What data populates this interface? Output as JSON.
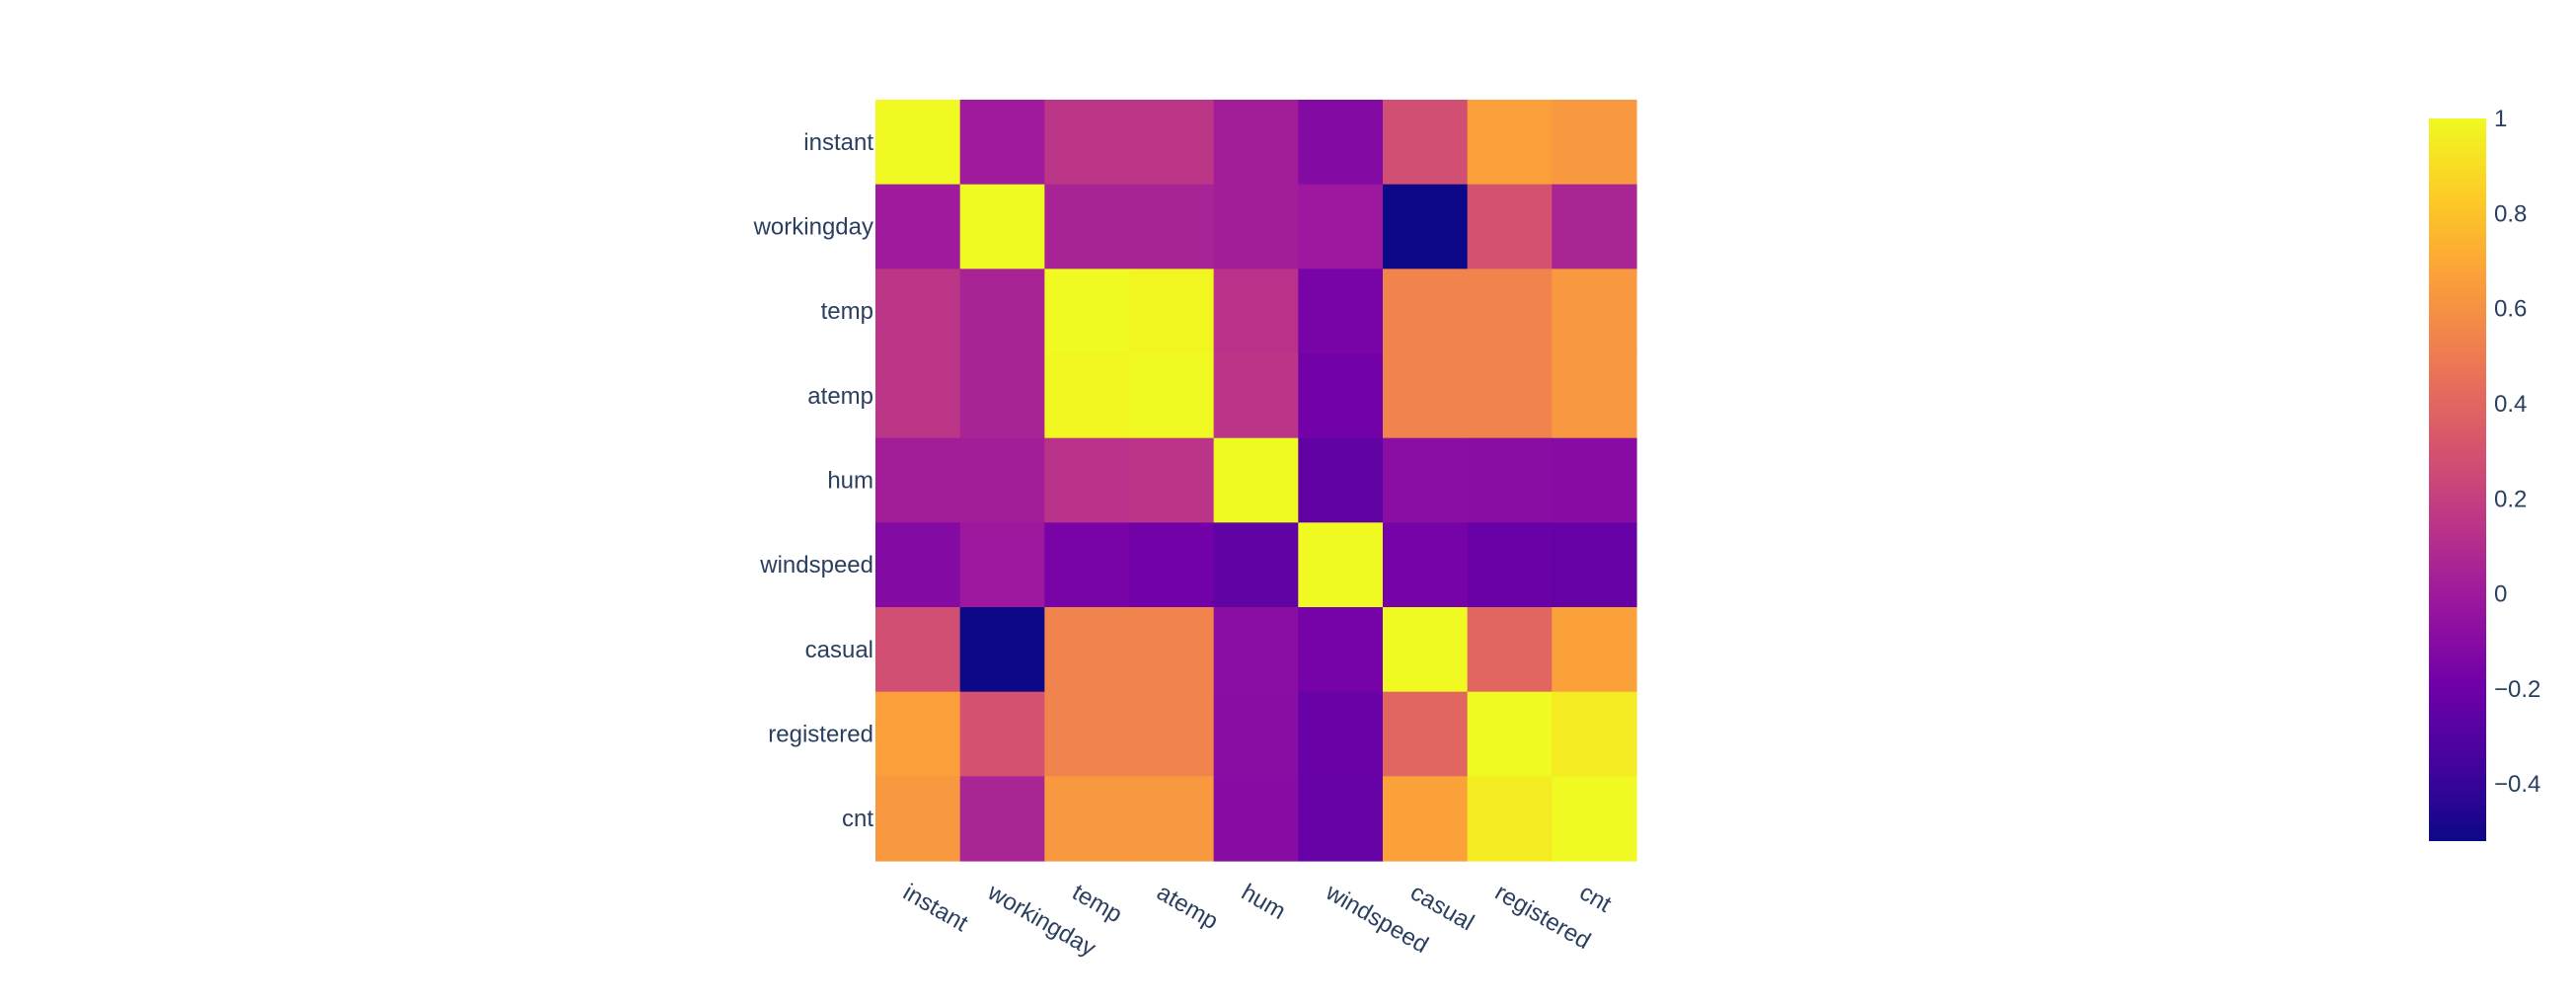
{
  "chart_data": {
    "type": "heatmap",
    "title": "",
    "xlabel": "",
    "ylabel": "",
    "variables": [
      "instant",
      "workingday",
      "temp",
      "atemp",
      "hum",
      "windspeed",
      "casual",
      "registered",
      "cnt"
    ],
    "x": [
      "instant",
      "workingday",
      "temp",
      "atemp",
      "hum",
      "windspeed",
      "casual",
      "registered",
      "cnt"
    ],
    "y": [
      "instant",
      "workingday",
      "temp",
      "atemp",
      "hum",
      "windspeed",
      "casual",
      "registered",
      "cnt"
    ],
    "z": [
      [
        1.0,
        -0.0,
        0.15,
        0.15,
        0.02,
        -0.11,
        0.28,
        0.66,
        0.63
      ],
      [
        -0.0,
        1.0,
        0.05,
        0.05,
        0.02,
        -0.01,
        -0.52,
        0.3,
        0.06
      ],
      [
        0.15,
        0.05,
        1.0,
        0.99,
        0.13,
        -0.16,
        0.54,
        0.54,
        0.63
      ],
      [
        0.15,
        0.05,
        0.99,
        1.0,
        0.14,
        -0.18,
        0.54,
        0.54,
        0.63
      ],
      [
        0.02,
        0.02,
        0.13,
        0.14,
        1.0,
        -0.25,
        -0.08,
        -0.09,
        -0.1
      ],
      [
        -0.11,
        -0.01,
        -0.16,
        -0.18,
        -0.25,
        1.0,
        -0.17,
        -0.22,
        -0.23
      ],
      [
        0.28,
        -0.52,
        0.54,
        0.54,
        -0.08,
        -0.17,
        1.0,
        0.4,
        0.67
      ],
      [
        0.66,
        0.3,
        0.54,
        0.54,
        -0.09,
        -0.22,
        0.4,
        1.0,
        0.95
      ],
      [
        0.63,
        0.06,
        0.63,
        0.63,
        -0.1,
        -0.23,
        0.67,
        0.95,
        1.0
      ]
    ],
    "zmin": -0.52,
    "zmax": 1.0,
    "colorscale": "Plasma",
    "colorbar": {
      "ticks": [
        1,
        0.8,
        0.6,
        0.4,
        0.2,
        0,
        -0.2,
        -0.4
      ],
      "tick_labels": [
        "1",
        "0.8",
        "0.6",
        "0.4",
        "0.2",
        "0",
        "−0.2",
        "−0.4"
      ]
    }
  },
  "colors": {
    "plasma": [
      "#0d0887",
      "#46039f",
      "#7201a8",
      "#9c179e",
      "#bd3786",
      "#d8576b",
      "#ed7953",
      "#fb9f3a",
      "#fdca26",
      "#f0f921"
    ],
    "tick_text": "#2a3f5f",
    "background": "#ffffff"
  }
}
